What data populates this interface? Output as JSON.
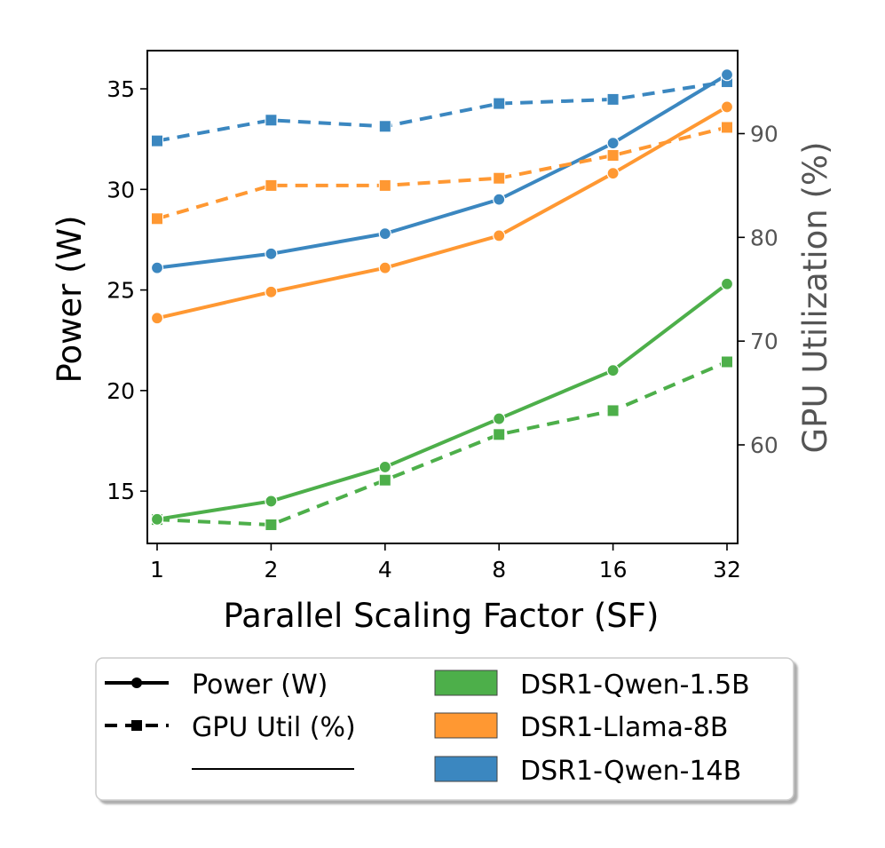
{
  "chart_data": {
    "type": "line",
    "xlabel": "Parallel Scaling Factor (SF)",
    "ylabel_left": "Power (W)",
    "ylabel_right": "GPU Utilization (%)",
    "x": [
      "1",
      "2",
      "4",
      "8",
      "16",
      "32"
    ],
    "ylim_left": [
      12.4,
      36.9
    ],
    "yticks_left": [
      "15",
      "20",
      "25",
      "30",
      "35"
    ],
    "ylim_right": [
      50.5,
      98.0
    ],
    "yticks_right": [
      "60",
      "70",
      "80",
      "90"
    ],
    "series": [
      {
        "name": "DSR1-Qwen-1.5B",
        "color": "#4daf4a",
        "power": [
          13.6,
          14.5,
          16.2,
          18.6,
          21.0,
          25.3
        ],
        "gpu_util": [
          52.8,
          52.3,
          56.6,
          61.0,
          63.3,
          68.0
        ]
      },
      {
        "name": "DSR1-Llama-8B",
        "color": "#ff9832",
        "power": [
          23.6,
          24.9,
          26.1,
          27.7,
          30.8,
          34.1
        ],
        "gpu_util": [
          81.8,
          85.0,
          85.0,
          85.7,
          87.9,
          90.6
        ]
      },
      {
        "name": "DSR1-Qwen-14B",
        "color": "#3b87c0",
        "power": [
          26.1,
          26.8,
          27.8,
          29.5,
          32.3,
          35.7
        ],
        "gpu_util": [
          89.3,
          91.3,
          90.7,
          92.9,
          93.3,
          95.0
        ]
      }
    ],
    "legend": {
      "placement": "bottom",
      "style_entries": [
        "Power (W)",
        "GPU Util (%)"
      ],
      "series_entries": [
        "DSR1-Qwen-1.5B",
        "DSR1-Llama-8B",
        "DSR1-Qwen-14B"
      ]
    }
  }
}
